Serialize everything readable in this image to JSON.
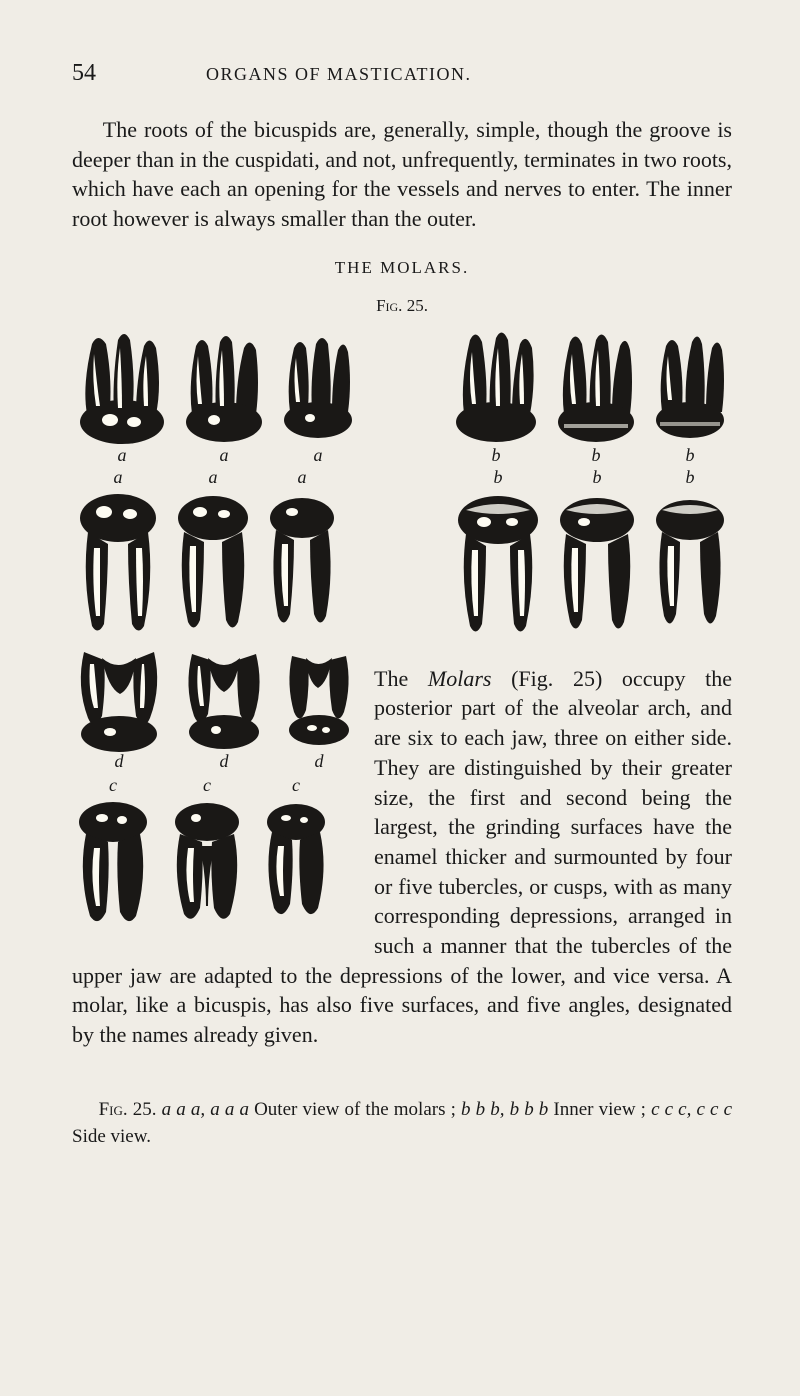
{
  "page_number": "54",
  "running_head": "ORGANS OF MASTICATION.",
  "paragraph_1": "The roots of the bicuspids are, generally, simple, though the groove is deeper than in the cuspidati, and not, unfrequently, terminates in two roots, which have each an opening for the vessels and nerves to enter. The inner root however is always smaller than the outer.",
  "section_title": "THE MOLARS.",
  "figure_label_prefix": "Fig.",
  "figure_number": "25.",
  "labels": {
    "a_script": "a",
    "b_script": "b",
    "c_script": "c",
    "d_script": "d"
  },
  "wrap_text": "The Molars (Fig. 25) occupy the posterior part of the al­veolar arch, and are six to each jaw, three on either side. They are distinguished by their great­er size, the first and second be­ing the largest, the grinding surfaces have the enamel thick­er and surmounted by four or five tubercles, or cusps, with as many corresponding depres­sions, arranged in such a man­ner that the tubercles of the upper jaw are adapted to the de­pressions of the lower, and vice versa. A molar, like a bicus­pis, has also five surfaces, and five angles, designated by the names already given.",
  "caption_parts": {
    "fig": "Fig. 25.",
    "seg_a": "a a a, a a a",
    "outer_text": " Outer view of the molars ; ",
    "seg_b": "b b b, b b b",
    "inner_text": " Inner view ; ",
    "seg_c": "c c c, c c c",
    "side_text": " Side view."
  },
  "tooth_colors": {
    "fill": "#1a1816",
    "highlight": "#fdfbf2",
    "mid": "#706a5f"
  }
}
